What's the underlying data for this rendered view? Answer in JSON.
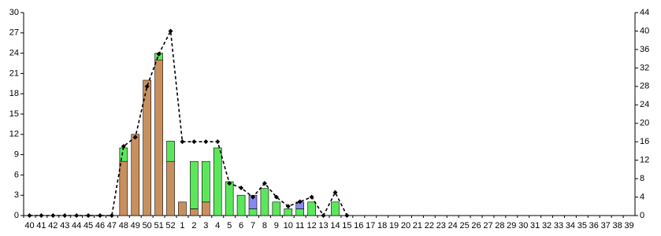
{
  "chart_data": {
    "type": "bar",
    "categories": [
      "40",
      "41",
      "42",
      "43",
      "44",
      "45",
      "46",
      "47",
      "48",
      "49",
      "50",
      "51",
      "52",
      "1",
      "2",
      "3",
      "4",
      "5",
      "6",
      "7",
      "8",
      "9",
      "10",
      "11",
      "12",
      "13",
      "14",
      "15",
      "16",
      "17",
      "18",
      "19",
      "20",
      "21",
      "22",
      "23",
      "24",
      "25",
      "26",
      "27",
      "28",
      "29",
      "30",
      "31",
      "32",
      "33",
      "34",
      "35",
      "36",
      "37",
      "38",
      "39"
    ],
    "series": [
      {
        "color": "#c8905f",
        "values": [
          0,
          0,
          0,
          0,
          0,
          0,
          0,
          0,
          8,
          12,
          20,
          23,
          8,
          2,
          1,
          2,
          0,
          0,
          0,
          0,
          0,
          0,
          0,
          0,
          0,
          0,
          0,
          0,
          0,
          0,
          0,
          0,
          0,
          0,
          0,
          0,
          0,
          0,
          0,
          0,
          0,
          0,
          0,
          0,
          0,
          0,
          0,
          0,
          0,
          0,
          0,
          0
        ]
      },
      {
        "color": "#5ce65c",
        "values": [
          0,
          0,
          0,
          0,
          0,
          0,
          0,
          0,
          2,
          0,
          0,
          1,
          3,
          0,
          7,
          6,
          10,
          5,
          3,
          1,
          4,
          2,
          1,
          1,
          2,
          0,
          2,
          0,
          0,
          0,
          0,
          0,
          0,
          0,
          0,
          0,
          0,
          0,
          0,
          0,
          0,
          0,
          0,
          0,
          0,
          0,
          0,
          0,
          0,
          0,
          0,
          0
        ]
      },
      {
        "color": "#8888ee",
        "values": [
          0,
          0,
          0,
          0,
          0,
          0,
          0,
          0,
          0,
          0,
          0,
          0,
          0,
          0,
          0,
          0,
          0,
          0,
          0,
          2,
          0,
          0,
          0,
          1,
          0,
          0,
          0,
          0,
          0,
          0,
          0,
          0,
          0,
          0,
          0,
          0,
          0,
          0,
          0,
          0,
          0,
          0,
          0,
          0,
          0,
          0,
          0,
          0,
          0,
          0,
          0,
          0
        ]
      },
      {
        "type": "line",
        "axis": "y2",
        "color": "#000000",
        "values": [
          0,
          0,
          0,
          0,
          0,
          0,
          0,
          0,
          15,
          17,
          28,
          35,
          40,
          16,
          16,
          16,
          16,
          7,
          6,
          4,
          7,
          4,
          2,
          3,
          4,
          0,
          5,
          0,
          null,
          null,
          null,
          null,
          null,
          null,
          null,
          null,
          null,
          null,
          null,
          null,
          null,
          null,
          null,
          null,
          null,
          null,
          null,
          null,
          null,
          null,
          null,
          null
        ]
      }
    ],
    "ylim": [
      0,
      30
    ],
    "yticks": [
      0,
      3,
      6,
      9,
      12,
      15,
      18,
      21,
      24,
      27,
      30
    ],
    "y2lim": [
      0,
      44
    ],
    "y2ticks": [
      0,
      4,
      8,
      12,
      16,
      20,
      24,
      28,
      32,
      36,
      40,
      44
    ]
  }
}
